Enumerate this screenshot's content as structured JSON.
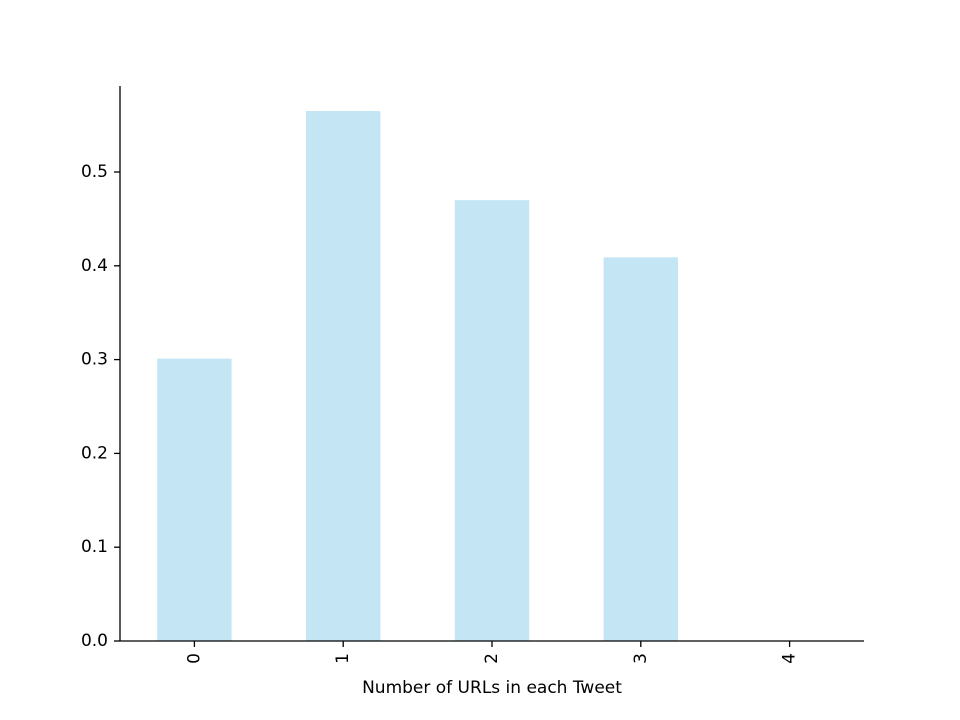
{
  "chart_data": {
    "type": "bar",
    "categories": [
      "0",
      "1",
      "2",
      "3",
      "4"
    ],
    "values": [
      0.301,
      0.565,
      0.47,
      0.409,
      0.0
    ],
    "title": "",
    "xlabel": "Number of URLs in each Tweet",
    "ylabel": "",
    "ylim": [
      0,
      0.5917
    ],
    "yticks": [
      "0.0",
      "0.1",
      "0.2",
      "0.3",
      "0.4",
      "0.5"
    ],
    "x_tick_rotation": "vertical",
    "grid": false,
    "legend": "none",
    "bar_color": "#c3e5f4",
    "axis_color": "#000000",
    "spines": "left-bottom"
  }
}
